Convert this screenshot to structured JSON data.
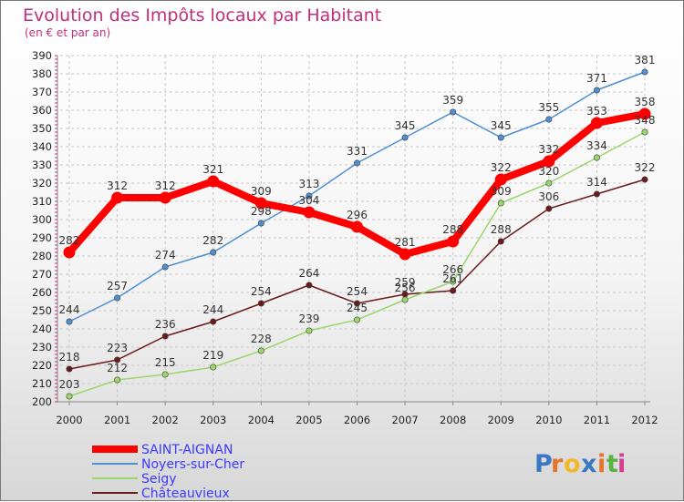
{
  "chart_data": {
    "type": "line",
    "title": "Evolution des Impôts locaux par Habitant",
    "subtitle": "(en € et par an)",
    "categories": [
      "2000",
      "2001",
      "2002",
      "2003",
      "2004",
      "2005",
      "2006",
      "2007",
      "2008",
      "2009",
      "2010",
      "2011",
      "2012"
    ],
    "ylim": [
      200,
      390
    ],
    "yticks": [
      200,
      210,
      220,
      230,
      240,
      250,
      260,
      270,
      280,
      290,
      300,
      310,
      320,
      330,
      340,
      350,
      360,
      370,
      380,
      390
    ],
    "grid": true,
    "series": [
      {
        "name": "Châteauvieux",
        "color": "#6b1a1a",
        "values": [
          218,
          223,
          236,
          244,
          254,
          264,
          254,
          259,
          261,
          288,
          306,
          314,
          322
        ]
      },
      {
        "name": "Seigy",
        "color": "#99d66b",
        "values": [
          203,
          212,
          215,
          219,
          228,
          239,
          245,
          256,
          266,
          309,
          320,
          334,
          348
        ]
      },
      {
        "name": "Noyers-sur-Cher",
        "color": "#4f8fd0",
        "values": [
          244,
          257,
          274,
          282,
          298,
          313,
          331,
          345,
          359,
          345,
          355,
          371,
          381
        ]
      },
      {
        "name": "SAINT-AIGNAN",
        "color": "#ff0000",
        "values": [
          282,
          312,
          312,
          321,
          309,
          304,
          296,
          281,
          288,
          322,
          332,
          353,
          358
        ]
      }
    ],
    "legend": [
      "SAINT-AIGNAN",
      "Noyers-sur-Cher",
      "Seigy",
      "Châteauvieux"
    ]
  },
  "watermark": "Proxiti"
}
